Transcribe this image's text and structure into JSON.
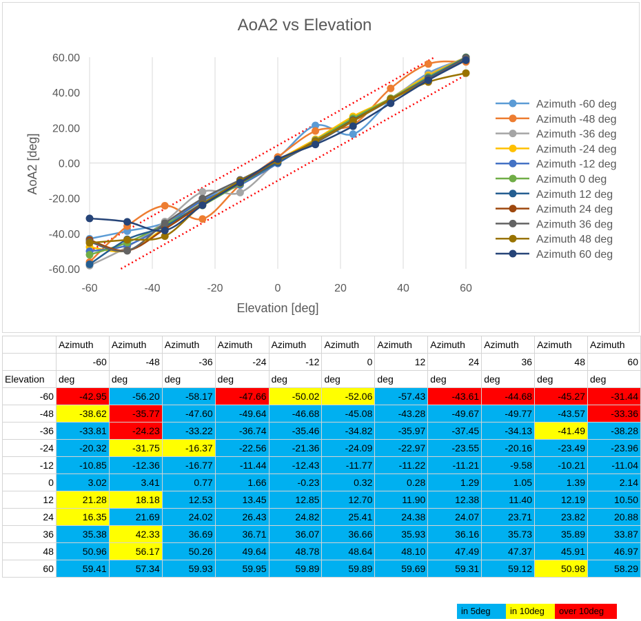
{
  "chart_data": {
    "type": "line",
    "title": "AoA2 vs Elevation",
    "xlabel": "Elevation [deg]",
    "ylabel": "AoA2 [deg]",
    "xlim": [
      -60,
      60
    ],
    "ylim": [
      -60,
      60
    ],
    "x_ticks": [
      "-60",
      "-40",
      "-20",
      "0",
      "20",
      "40",
      "60"
    ],
    "y_ticks": [
      "60.00",
      "40.00",
      "20.00",
      "0.00",
      "-20.00",
      "-40.00",
      "-60.00"
    ],
    "grid": "vertical",
    "legend_position": "right",
    "x": [
      -60,
      -48,
      -36,
      -24,
      -12,
      0,
      12,
      24,
      36,
      48,
      60
    ],
    "series": [
      {
        "name": "Azimuth -60 deg",
        "color": "#5b9bd5",
        "values": [
          -42.95,
          -38.62,
          -33.81,
          -20.32,
          -10.85,
          3.02,
          21.28,
          16.35,
          35.38,
          50.96,
          59.41
        ]
      },
      {
        "name": "Azimuth -48 deg",
        "color": "#ed7d31",
        "values": [
          -56.2,
          -35.77,
          -24.23,
          -31.75,
          -12.36,
          3.41,
          18.18,
          21.69,
          42.33,
          56.17,
          57.34
        ]
      },
      {
        "name": "Azimuth -36 deg",
        "color": "#a5a5a5",
        "values": [
          -58.17,
          -47.6,
          -33.22,
          -16.37,
          -16.77,
          0.77,
          12.53,
          24.02,
          36.69,
          50.26,
          59.93
        ]
      },
      {
        "name": "Azimuth -24 deg",
        "color": "#ffc000",
        "values": [
          -47.66,
          -49.64,
          -36.74,
          -22.56,
          -11.44,
          1.66,
          13.45,
          26.43,
          36.71,
          49.64,
          59.95
        ]
      },
      {
        "name": "Azimuth -12 deg",
        "color": "#4472c4",
        "values": [
          -50.02,
          -46.68,
          -35.46,
          -21.36,
          -12.43,
          -0.23,
          12.85,
          24.82,
          36.07,
          48.78,
          59.89
        ]
      },
      {
        "name": "Azimuth 0 deg",
        "color": "#70ad47",
        "values": [
          -52.06,
          -45.08,
          -34.82,
          -24.09,
          -11.77,
          0.32,
          12.7,
          25.41,
          36.66,
          48.64,
          59.89
        ]
      },
      {
        "name": "Azimuth 12 deg",
        "color": "#255e91",
        "values": [
          -57.43,
          -43.28,
          -35.97,
          -22.97,
          -11.22,
          0.28,
          11.9,
          24.38,
          35.93,
          48.1,
          59.69
        ]
      },
      {
        "name": "Azimuth 24 deg",
        "color": "#9e480e",
        "values": [
          -43.61,
          -49.67,
          -37.45,
          -23.55,
          -11.21,
          1.29,
          12.38,
          24.07,
          36.16,
          47.49,
          59.31
        ]
      },
      {
        "name": "Azimuth 36 deg",
        "color": "#636363",
        "values": [
          -44.68,
          -49.77,
          -34.13,
          -20.16,
          -9.58,
          1.05,
          11.4,
          23.71,
          35.73,
          47.37,
          59.12
        ]
      },
      {
        "name": "Azimuth 48 deg",
        "color": "#997300",
        "values": [
          -45.27,
          -43.57,
          -41.49,
          -23.49,
          -10.21,
          1.39,
          12.19,
          23.82,
          35.89,
          45.91,
          50.98
        ]
      },
      {
        "name": "Azimuth 60 deg",
        "color": "#264478",
        "values": [
          -31.44,
          -33.36,
          -38.28,
          -23.96,
          -11.04,
          2.14,
          10.5,
          20.88,
          33.87,
          46.97,
          58.29
        ]
      }
    ],
    "tolerance_lines": {
      "color": "#ff0000",
      "offset_deg": 10
    }
  },
  "table": {
    "header_row1": [
      "",
      "Azimuth",
      "Azimuth",
      "Azimuth",
      "Azimuth",
      "Azimuth",
      "Azimuth",
      "Azimuth",
      "Azimuth",
      "Azimuth",
      "Azimuth",
      "Azimuth"
    ],
    "header_row2": [
      "",
      "-60",
      "-48",
      "-36",
      "-24",
      "-12",
      "0",
      "12",
      "24",
      "36",
      "48",
      "60"
    ],
    "header_row3": [
      "Elevation",
      "deg",
      "deg",
      "deg",
      "deg",
      "deg",
      "deg",
      "deg",
      "deg",
      "deg",
      "deg",
      "deg"
    ],
    "rows": [
      {
        "elevation": "-60",
        "values": [
          "-42.95",
          "-56.20",
          "-58.17",
          "-47.66",
          "-50.02",
          "-52.06",
          "-57.43",
          "-43.61",
          "-44.68",
          "-45.27",
          "-31.44"
        ],
        "colors": [
          "over",
          "5",
          "5",
          "over",
          "10",
          "10",
          "5",
          "over",
          "over",
          "over",
          "over"
        ]
      },
      {
        "elevation": "-48",
        "values": [
          "-38.62",
          "-35.77",
          "-47.60",
          "-49.64",
          "-46.68",
          "-45.08",
          "-43.28",
          "-49.67",
          "-49.77",
          "-43.57",
          "-33.36"
        ],
        "colors": [
          "10",
          "over",
          "5",
          "5",
          "5",
          "5",
          "5",
          "5",
          "5",
          "5",
          "over"
        ]
      },
      {
        "elevation": "-36",
        "values": [
          "-33.81",
          "-24.23",
          "-33.22",
          "-36.74",
          "-35.46",
          "-34.82",
          "-35.97",
          "-37.45",
          "-34.13",
          "-41.49",
          "-38.28"
        ],
        "colors": [
          "5",
          "over",
          "5",
          "5",
          "5",
          "5",
          "5",
          "5",
          "5",
          "10",
          "5"
        ]
      },
      {
        "elevation": "-24",
        "values": [
          "-20.32",
          "-31.75",
          "-16.37",
          "-22.56",
          "-21.36",
          "-24.09",
          "-22.97",
          "-23.55",
          "-20.16",
          "-23.49",
          "-23.96"
        ],
        "colors": [
          "5",
          "10",
          "10",
          "5",
          "5",
          "5",
          "5",
          "5",
          "5",
          "5",
          "5"
        ]
      },
      {
        "elevation": "-12",
        "values": [
          "-10.85",
          "-12.36",
          "-16.77",
          "-11.44",
          "-12.43",
          "-11.77",
          "-11.22",
          "-11.21",
          "-9.58",
          "-10.21",
          "-11.04"
        ],
        "colors": [
          "5",
          "5",
          "5",
          "5",
          "5",
          "5",
          "5",
          "5",
          "5",
          "5",
          "5"
        ]
      },
      {
        "elevation": "0",
        "values": [
          "3.02",
          "3.41",
          "0.77",
          "1.66",
          "-0.23",
          "0.32",
          "0.28",
          "1.29",
          "1.05",
          "1.39",
          "2.14"
        ],
        "colors": [
          "5",
          "5",
          "5",
          "5",
          "5",
          "5",
          "5",
          "5",
          "5",
          "5",
          "5"
        ]
      },
      {
        "elevation": "12",
        "values": [
          "21.28",
          "18.18",
          "12.53",
          "13.45",
          "12.85",
          "12.70",
          "11.90",
          "12.38",
          "11.40",
          "12.19",
          "10.50"
        ],
        "colors": [
          "10",
          "10",
          "5",
          "5",
          "5",
          "5",
          "5",
          "5",
          "5",
          "5",
          "5"
        ]
      },
      {
        "elevation": "24",
        "values": [
          "16.35",
          "21.69",
          "24.02",
          "26.43",
          "24.82",
          "25.41",
          "24.38",
          "24.07",
          "23.71",
          "23.82",
          "20.88"
        ],
        "colors": [
          "10",
          "5",
          "5",
          "5",
          "5",
          "5",
          "5",
          "5",
          "5",
          "5",
          "5"
        ]
      },
      {
        "elevation": "36",
        "values": [
          "35.38",
          "42.33",
          "36.69",
          "36.71",
          "36.07",
          "36.66",
          "35.93",
          "36.16",
          "35.73",
          "35.89",
          "33.87"
        ],
        "colors": [
          "5",
          "10",
          "5",
          "5",
          "5",
          "5",
          "5",
          "5",
          "5",
          "5",
          "5"
        ]
      },
      {
        "elevation": "48",
        "values": [
          "50.96",
          "56.17",
          "50.26",
          "49.64",
          "48.78",
          "48.64",
          "48.10",
          "47.49",
          "47.37",
          "45.91",
          "46.97"
        ],
        "colors": [
          "5",
          "10",
          "5",
          "5",
          "5",
          "5",
          "5",
          "5",
          "5",
          "5",
          "5"
        ]
      },
      {
        "elevation": "60",
        "values": [
          "59.41",
          "57.34",
          "59.93",
          "59.95",
          "59.89",
          "59.89",
          "59.69",
          "59.31",
          "59.12",
          "50.98",
          "58.29"
        ],
        "colors": [
          "5",
          "5",
          "5",
          "5",
          "5",
          "5",
          "5",
          "5",
          "5",
          "10",
          "5"
        ]
      }
    ]
  },
  "color_key": [
    {
      "label": "in 5deg",
      "color": "#00b0f0"
    },
    {
      "label": "in 10deg",
      "color": "#ffff00"
    },
    {
      "label": "over 10deg",
      "color": "#ff0000"
    }
  ]
}
